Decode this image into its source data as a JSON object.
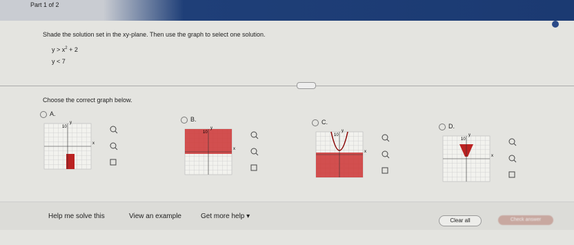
{
  "header": {
    "part": "Part 1 of 2"
  },
  "question": {
    "instruction": "Shade the solution set in the xy-plane. Then use the graph to select one solution.",
    "inequalities": [
      {
        "lhs": "y > x",
        "exp": "2",
        "rhs": "+ 2"
      },
      {
        "lhs": "y < 7",
        "exp": "",
        "rhs": ""
      }
    ]
  },
  "prompt": "Choose the correct graph below.",
  "options": [
    {
      "label": "A.",
      "ylabel": "y",
      "xlabel": "x",
      "tick": "10"
    },
    {
      "label": "B.",
      "ylabel": "y",
      "xlabel": "x",
      "tick": "10"
    },
    {
      "label": "C.",
      "ylabel": "y",
      "xlabel": "x",
      "tick": "10"
    },
    {
      "label": "D.",
      "ylabel": "y",
      "xlabel": "x",
      "tick": "10"
    }
  ],
  "footer": {
    "help": "Help me solve this",
    "example": "View an example",
    "more": "Get more help ▾",
    "clear": "Clear all",
    "check": "Check answer"
  }
}
